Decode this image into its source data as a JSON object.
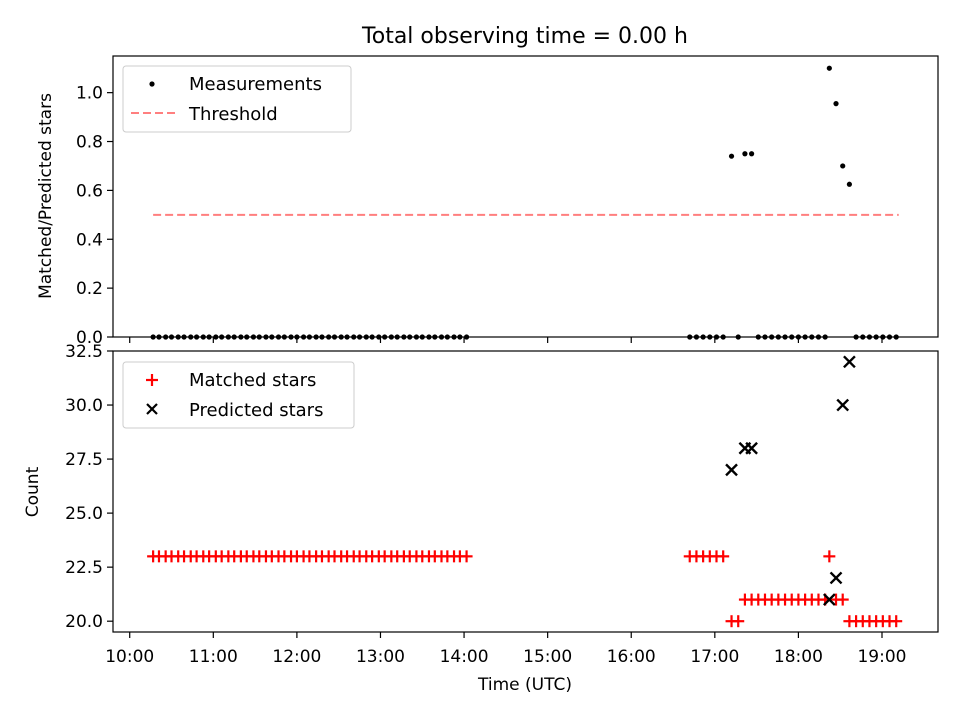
{
  "chart_data": [
    {
      "type": "scatter",
      "title": "Total observing time = 0.00 h",
      "xlabel": "",
      "ylabel": "Matched/Predicted stars",
      "xlim": [
        9.8,
        19.67
      ],
      "ylim": [
        0,
        1.15
      ],
      "yticks": [
        0.0,
        0.2,
        0.4,
        0.6,
        0.8,
        1.0
      ],
      "ytick_labels": [
        "0.0",
        "0.2",
        "0.4",
        "0.6",
        "0.8",
        "1.0"
      ],
      "legend_position": "top-left",
      "series": [
        {
          "name": "Measurements",
          "marker": "dot",
          "color": "#000000",
          "points": [
            [
              10.28,
              0
            ],
            [
              10.35,
              0
            ],
            [
              10.43,
              0
            ],
            [
              10.5,
              0
            ],
            [
              10.58,
              0
            ],
            [
              10.65,
              0
            ],
            [
              10.73,
              0
            ],
            [
              10.8,
              0
            ],
            [
              10.88,
              0
            ],
            [
              10.95,
              0
            ],
            [
              11.03,
              0
            ],
            [
              11.1,
              0
            ],
            [
              11.18,
              0
            ],
            [
              11.25,
              0
            ],
            [
              11.33,
              0
            ],
            [
              11.4,
              0
            ],
            [
              11.48,
              0
            ],
            [
              11.55,
              0
            ],
            [
              11.63,
              0
            ],
            [
              11.7,
              0
            ],
            [
              11.78,
              0
            ],
            [
              11.85,
              0
            ],
            [
              11.93,
              0
            ],
            [
              12.0,
              0
            ],
            [
              12.08,
              0
            ],
            [
              12.15,
              0
            ],
            [
              12.23,
              0
            ],
            [
              12.3,
              0
            ],
            [
              12.38,
              0
            ],
            [
              12.45,
              0
            ],
            [
              12.53,
              0
            ],
            [
              12.6,
              0
            ],
            [
              12.68,
              0
            ],
            [
              12.75,
              0
            ],
            [
              12.83,
              0
            ],
            [
              12.9,
              0
            ],
            [
              12.98,
              0
            ],
            [
              13.05,
              0
            ],
            [
              13.13,
              0
            ],
            [
              13.2,
              0
            ],
            [
              13.28,
              0
            ],
            [
              13.35,
              0
            ],
            [
              13.43,
              0
            ],
            [
              13.5,
              0
            ],
            [
              13.58,
              0
            ],
            [
              13.65,
              0
            ],
            [
              13.73,
              0
            ],
            [
              13.8,
              0
            ],
            [
              13.88,
              0
            ],
            [
              13.95,
              0
            ],
            [
              14.03,
              0
            ],
            [
              16.7,
              0
            ],
            [
              16.78,
              0
            ],
            [
              16.86,
              0
            ],
            [
              16.94,
              0
            ],
            [
              17.02,
              0
            ],
            [
              17.1,
              0
            ],
            [
              17.2,
              0.74
            ],
            [
              17.28,
              0
            ],
            [
              17.36,
              0.75
            ],
            [
              17.44,
              0.75
            ],
            [
              17.52,
              0
            ],
            [
              17.6,
              0
            ],
            [
              17.68,
              0
            ],
            [
              17.76,
              0
            ],
            [
              17.84,
              0
            ],
            [
              17.92,
              0
            ],
            [
              18.0,
              0
            ],
            [
              18.08,
              0
            ],
            [
              18.16,
              0
            ],
            [
              18.24,
              0
            ],
            [
              18.32,
              0
            ],
            [
              18.37,
              1.1
            ],
            [
              18.45,
              0.955
            ],
            [
              18.53,
              0.7
            ],
            [
              18.61,
              0.625
            ],
            [
              18.69,
              0
            ],
            [
              18.77,
              0
            ],
            [
              18.85,
              0
            ],
            [
              18.93,
              0
            ],
            [
              19.01,
              0
            ],
            [
              19.09,
              0
            ],
            [
              19.17,
              0
            ]
          ]
        },
        {
          "name": "Threshold",
          "marker": "dashed-line",
          "color": "#ff7f7f",
          "points": [
            [
              10.28,
              0.5
            ],
            [
              19.2,
              0.5
            ]
          ]
        }
      ]
    },
    {
      "type": "scatter",
      "title": "",
      "xlabel": "Time (UTC)",
      "ylabel": "Count",
      "xlim": [
        9.8,
        19.67
      ],
      "ylim": [
        19.5,
        32.5
      ],
      "yticks": [
        20.0,
        22.5,
        25.0,
        27.5,
        30.0,
        32.5
      ],
      "ytick_labels": [
        "20.0",
        "22.5",
        "25.0",
        "27.5",
        "30.0",
        "32.5"
      ],
      "xticks": [
        10,
        11,
        12,
        13,
        14,
        15,
        16,
        17,
        18,
        19
      ],
      "xtick_labels": [
        "10:00",
        "11:00",
        "12:00",
        "13:00",
        "14:00",
        "15:00",
        "16:00",
        "17:00",
        "18:00",
        "19:00"
      ],
      "legend_position": "top-left",
      "series": [
        {
          "name": "Matched stars",
          "marker": "plus",
          "color": "#ff0000",
          "points": [
            [
              10.28,
              23
            ],
            [
              10.35,
              23
            ],
            [
              10.43,
              23
            ],
            [
              10.5,
              23
            ],
            [
              10.58,
              23
            ],
            [
              10.65,
              23
            ],
            [
              10.73,
              23
            ],
            [
              10.8,
              23
            ],
            [
              10.88,
              23
            ],
            [
              10.95,
              23
            ],
            [
              11.03,
              23
            ],
            [
              11.1,
              23
            ],
            [
              11.18,
              23
            ],
            [
              11.25,
              23
            ],
            [
              11.33,
              23
            ],
            [
              11.4,
              23
            ],
            [
              11.48,
              23
            ],
            [
              11.55,
              23
            ],
            [
              11.63,
              23
            ],
            [
              11.7,
              23
            ],
            [
              11.78,
              23
            ],
            [
              11.85,
              23
            ],
            [
              11.93,
              23
            ],
            [
              12.0,
              23
            ],
            [
              12.08,
              23
            ],
            [
              12.15,
              23
            ],
            [
              12.23,
              23
            ],
            [
              12.3,
              23
            ],
            [
              12.38,
              23
            ],
            [
              12.45,
              23
            ],
            [
              12.53,
              23
            ],
            [
              12.6,
              23
            ],
            [
              12.68,
              23
            ],
            [
              12.75,
              23
            ],
            [
              12.83,
              23
            ],
            [
              12.9,
              23
            ],
            [
              12.98,
              23
            ],
            [
              13.05,
              23
            ],
            [
              13.13,
              23
            ],
            [
              13.2,
              23
            ],
            [
              13.28,
              23
            ],
            [
              13.35,
              23
            ],
            [
              13.43,
              23
            ],
            [
              13.5,
              23
            ],
            [
              13.58,
              23
            ],
            [
              13.65,
              23
            ],
            [
              13.73,
              23
            ],
            [
              13.8,
              23
            ],
            [
              13.88,
              23
            ],
            [
              13.95,
              23
            ],
            [
              14.03,
              23
            ],
            [
              16.7,
              23
            ],
            [
              16.78,
              23
            ],
            [
              16.86,
              23
            ],
            [
              16.94,
              23
            ],
            [
              17.02,
              23
            ],
            [
              17.1,
              23
            ],
            [
              17.2,
              20
            ],
            [
              17.28,
              20
            ],
            [
              17.36,
              21
            ],
            [
              17.44,
              21
            ],
            [
              17.52,
              21
            ],
            [
              17.6,
              21
            ],
            [
              17.68,
              21
            ],
            [
              17.76,
              21
            ],
            [
              17.84,
              21
            ],
            [
              17.92,
              21
            ],
            [
              18.0,
              21
            ],
            [
              18.08,
              21
            ],
            [
              18.16,
              21
            ],
            [
              18.24,
              21
            ],
            [
              18.32,
              21
            ],
            [
              18.37,
              23
            ],
            [
              18.45,
              21
            ],
            [
              18.53,
              21
            ],
            [
              18.61,
              20
            ],
            [
              18.69,
              20
            ],
            [
              18.77,
              20
            ],
            [
              18.85,
              20
            ],
            [
              18.93,
              20
            ],
            [
              19.01,
              20
            ],
            [
              19.09,
              20
            ],
            [
              19.17,
              20
            ]
          ]
        },
        {
          "name": "Predicted stars",
          "marker": "x",
          "color": "#000000",
          "points": [
            [
              17.2,
              27
            ],
            [
              17.36,
              28
            ],
            [
              17.44,
              28
            ],
            [
              18.37,
              21
            ],
            [
              18.45,
              22
            ],
            [
              18.53,
              30
            ],
            [
              18.61,
              32
            ]
          ]
        }
      ]
    }
  ]
}
